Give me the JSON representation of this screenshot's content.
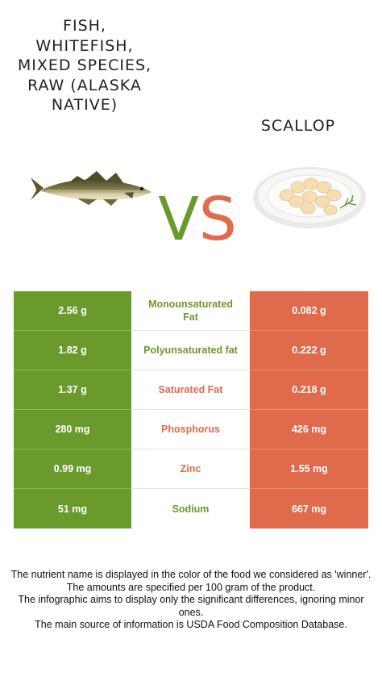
{
  "left_food": {
    "name": "Fish, whitefish, mixed species, raw (Alaska Native)"
  },
  "right_food": {
    "name": "Scallop"
  },
  "vs": {
    "v": "V",
    "s": "S"
  },
  "colors": {
    "left": "#6a9a2c",
    "right": "#e06a4c"
  },
  "rows": [
    {
      "left": "2.56 g",
      "nutrient": "Monounsaturated Fat",
      "right": "0.082 g",
      "winner": "left"
    },
    {
      "left": "1.82 g",
      "nutrient": "Polyunsaturated fat",
      "right": "0.222 g",
      "winner": "left"
    },
    {
      "left": "1.37 g",
      "nutrient": "Saturated Fat",
      "right": "0.218 g",
      "winner": "right"
    },
    {
      "left": "280 mg",
      "nutrient": "Phosphorus",
      "right": "426 mg",
      "winner": "right"
    },
    {
      "left": "0.99 mg",
      "nutrient": "Zinc",
      "right": "1.55 mg",
      "winner": "right"
    },
    {
      "left": "51 mg",
      "nutrient": "Sodium",
      "right": "667 mg",
      "winner": "left"
    }
  ],
  "footer": [
    "The nutrient name is displayed in the color of the food we considered as 'winner'.",
    "The amounts are specified per 100 gram of the product.",
    "The infographic aims to display only the significant differences, ignoring minor ones.",
    "The main source of information is USDA Food Composition Database."
  ]
}
